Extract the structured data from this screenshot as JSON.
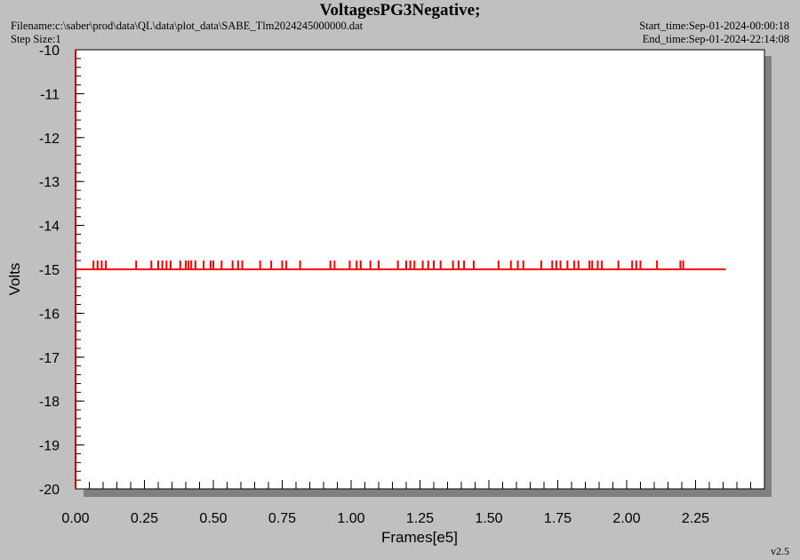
{
  "header": {
    "title": "VoltagesPG3Negative;",
    "filename": "Filename:c:\\saber\\prod\\data\\QL\\data\\plot_data\\SABE_Tlm2024245000000.dat",
    "step_size": "Step Size:1",
    "start_time": "Start_time:Sep-01-2024-00:00:18",
    "end_time": "End_time:Sep-01-2024-22:14:08"
  },
  "footer": {
    "version": "v2.5"
  },
  "chart_data": {
    "type": "line",
    "title": "VoltagesPG3Negative;",
    "xlabel": "Frames[e5]",
    "ylabel": "Volts",
    "xlim": [
      0.0,
      2.5
    ],
    "ylim": [
      -20,
      -10
    ],
    "x_ticks": [
      "0.00",
      "0.25",
      "0.50",
      "0.75",
      "1.00",
      "1.25",
      "1.50",
      "1.75",
      "2.00",
      "2.25"
    ],
    "y_ticks": [
      "-10",
      "-11",
      "-12",
      "-13",
      "-14",
      "-15",
      "-16",
      "-17",
      "-18",
      "-19",
      "-20"
    ],
    "grid": false,
    "colors": {
      "series": "#ff0000",
      "plot_bg": "#ffffff",
      "page_bg": "#c0c0c0",
      "shadow": "#808080"
    },
    "series": [
      {
        "baseline": -15.0,
        "spike_value": -14.8,
        "x_start": 0.0,
        "x_end": 2.36,
        "spike_x": [
          0.065,
          0.08,
          0.095,
          0.11,
          0.22,
          0.275,
          0.3,
          0.315,
          0.33,
          0.345,
          0.38,
          0.4,
          0.41,
          0.42,
          0.435,
          0.465,
          0.49,
          0.5,
          0.53,
          0.57,
          0.59,
          0.605,
          0.67,
          0.71,
          0.75,
          0.765,
          0.815,
          0.925,
          0.94,
          0.995,
          1.02,
          1.035,
          1.07,
          1.1,
          1.17,
          1.2,
          1.215,
          1.23,
          1.26,
          1.28,
          1.3,
          1.325,
          1.37,
          1.39,
          1.41,
          1.445,
          1.535,
          1.58,
          1.605,
          1.625,
          1.69,
          1.73,
          1.745,
          1.76,
          1.785,
          1.81,
          1.825,
          1.865,
          1.875,
          1.895,
          1.91,
          1.97,
          2.02,
          2.035,
          2.05,
          2.11,
          2.195,
          2.205
        ]
      }
    ]
  }
}
